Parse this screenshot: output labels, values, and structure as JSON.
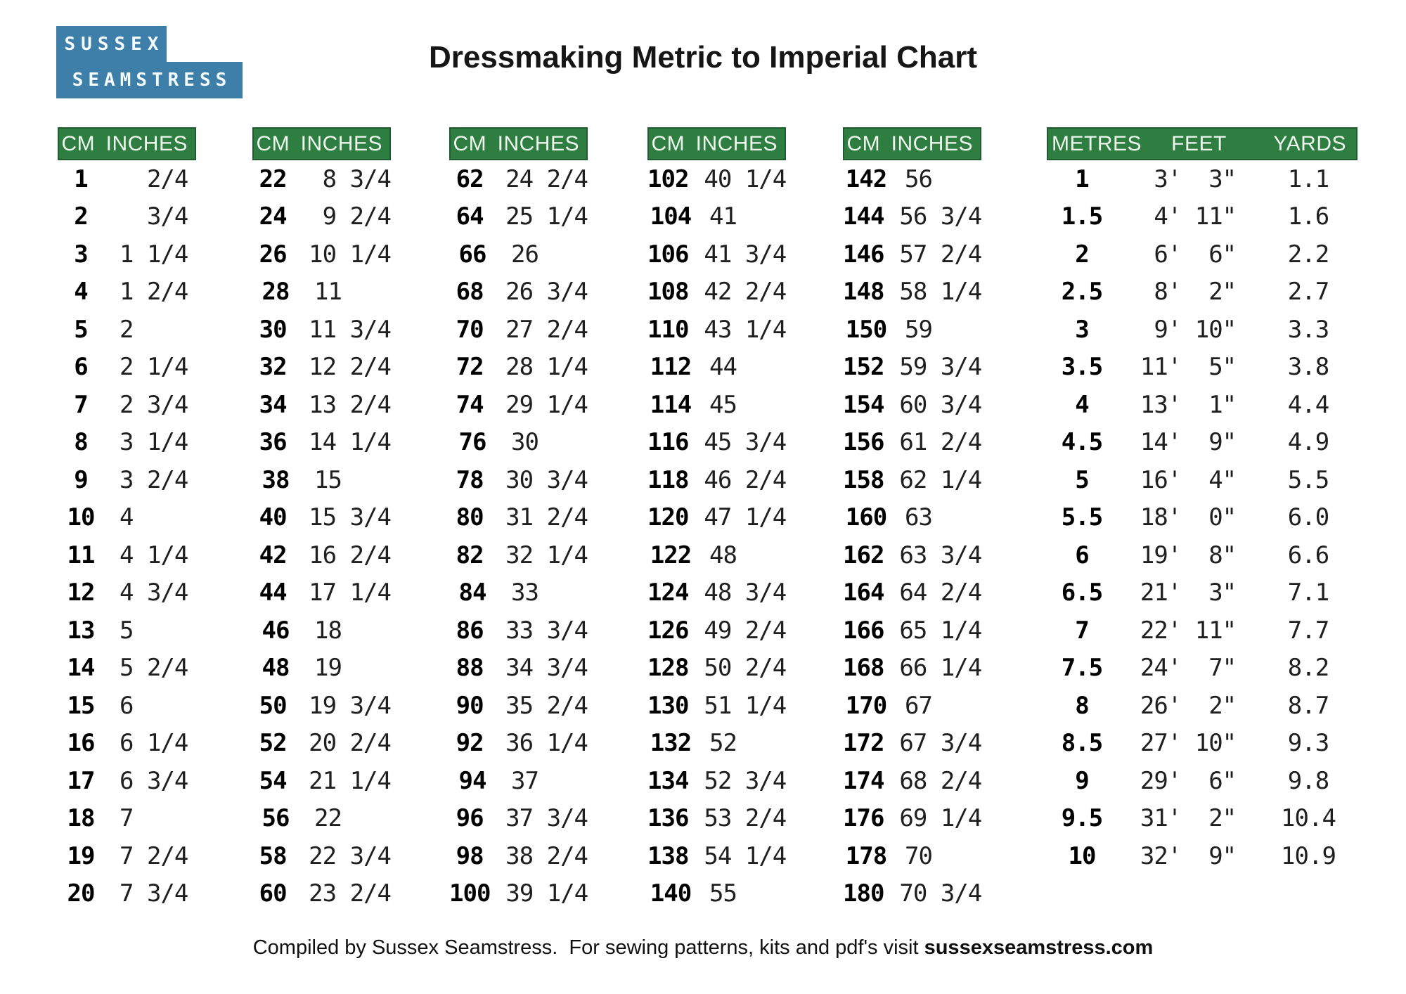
{
  "title": "Dressmaking Metric to Imperial Chart",
  "logo": {
    "line1": "SUSSEX",
    "line2": "SEAMSTRESS"
  },
  "colors": {
    "header_green": "#2e7d41",
    "logo_blue": "#3d7fa9"
  },
  "cm_tables": [
    {
      "headers": [
        "CM",
        "INCHES"
      ],
      "rows": [
        [
          "1",
          "  2/4"
        ],
        [
          "2",
          "  3/4"
        ],
        [
          "3",
          "1 1/4"
        ],
        [
          "4",
          "1 2/4"
        ],
        [
          "5",
          "2"
        ],
        [
          "6",
          "2 1/4"
        ],
        [
          "7",
          "2 3/4"
        ],
        [
          "8",
          "3 1/4"
        ],
        [
          "9",
          "3 2/4"
        ],
        [
          "10",
          "4"
        ],
        [
          "11",
          "4 1/4"
        ],
        [
          "12",
          "4 3/4"
        ],
        [
          "13",
          "5"
        ],
        [
          "14",
          "5 2/4"
        ],
        [
          "15",
          "6"
        ],
        [
          "16",
          "6 1/4"
        ],
        [
          "17",
          "6 3/4"
        ],
        [
          "18",
          "7"
        ],
        [
          "19",
          "7 2/4"
        ],
        [
          "20",
          "7 3/4"
        ]
      ]
    },
    {
      "headers": [
        "CM",
        "INCHES"
      ],
      "rows": [
        [
          "22",
          " 8 3/4"
        ],
        [
          "24",
          " 9 2/4"
        ],
        [
          "26",
          "10 1/4"
        ],
        [
          "28",
          "11"
        ],
        [
          "30",
          "11 3/4"
        ],
        [
          "32",
          "12 2/4"
        ],
        [
          "34",
          "13 2/4"
        ],
        [
          "36",
          "14 1/4"
        ],
        [
          "38",
          "15"
        ],
        [
          "40",
          "15 3/4"
        ],
        [
          "42",
          "16 2/4"
        ],
        [
          "44",
          "17 1/4"
        ],
        [
          "46",
          "18"
        ],
        [
          "48",
          "19"
        ],
        [
          "50",
          "19 3/4"
        ],
        [
          "52",
          "20 2/4"
        ],
        [
          "54",
          "21 1/4"
        ],
        [
          "56",
          "22"
        ],
        [
          "58",
          "22 3/4"
        ],
        [
          "60",
          "23 2/4"
        ]
      ]
    },
    {
      "headers": [
        "CM",
        "INCHES"
      ],
      "rows": [
        [
          "62",
          "24 2/4"
        ],
        [
          "64",
          "25 1/4"
        ],
        [
          "66",
          "26"
        ],
        [
          "68",
          "26 3/4"
        ],
        [
          "70",
          "27 2/4"
        ],
        [
          "72",
          "28 1/4"
        ],
        [
          "74",
          "29 1/4"
        ],
        [
          "76",
          "30"
        ],
        [
          "78",
          "30 3/4"
        ],
        [
          "80",
          "31 2/4"
        ],
        [
          "82",
          "32 1/4"
        ],
        [
          "84",
          "33"
        ],
        [
          "86",
          "33 3/4"
        ],
        [
          "88",
          "34 3/4"
        ],
        [
          "90",
          "35 2/4"
        ],
        [
          "92",
          "36 1/4"
        ],
        [
          "94",
          "37"
        ],
        [
          "96",
          "37 3/4"
        ],
        [
          "98",
          "38 2/4"
        ],
        [
          "100",
          "39 1/4"
        ]
      ]
    },
    {
      "headers": [
        "CM",
        "INCHES"
      ],
      "rows": [
        [
          "102",
          "40 1/4"
        ],
        [
          "104",
          "41"
        ],
        [
          "106",
          "41 3/4"
        ],
        [
          "108",
          "42 2/4"
        ],
        [
          "110",
          "43 1/4"
        ],
        [
          "112",
          "44"
        ],
        [
          "114",
          "45"
        ],
        [
          "116",
          "45 3/4"
        ],
        [
          "118",
          "46 2/4"
        ],
        [
          "120",
          "47 1/4"
        ],
        [
          "122",
          "48"
        ],
        [
          "124",
          "48 3/4"
        ],
        [
          "126",
          "49 2/4"
        ],
        [
          "128",
          "50 2/4"
        ],
        [
          "130",
          "51 1/4"
        ],
        [
          "132",
          "52"
        ],
        [
          "134",
          "52 3/4"
        ],
        [
          "136",
          "53 2/4"
        ],
        [
          "138",
          "54 1/4"
        ],
        [
          "140",
          "55"
        ]
      ]
    },
    {
      "headers": [
        "CM",
        "INCHES"
      ],
      "rows": [
        [
          "142",
          "56"
        ],
        [
          "144",
          "56 3/4"
        ],
        [
          "146",
          "57 2/4"
        ],
        [
          "148",
          "58 1/4"
        ],
        [
          "150",
          "59"
        ],
        [
          "152",
          "59 3/4"
        ],
        [
          "154",
          "60 3/4"
        ],
        [
          "156",
          "61 2/4"
        ],
        [
          "158",
          "62 1/4"
        ],
        [
          "160",
          "63"
        ],
        [
          "162",
          "63 3/4"
        ],
        [
          "164",
          "64 2/4"
        ],
        [
          "166",
          "65 1/4"
        ],
        [
          "168",
          "66 1/4"
        ],
        [
          "170",
          "67"
        ],
        [
          "172",
          "67 3/4"
        ],
        [
          "174",
          "68 2/4"
        ],
        [
          "176",
          "69 1/4"
        ],
        [
          "178",
          "70"
        ],
        [
          "180",
          "70 3/4"
        ]
      ]
    }
  ],
  "metres_table": {
    "headers": [
      "METRES",
      "FEET",
      "YARDS"
    ],
    "rows": [
      [
        "1",
        " 3'  3\"",
        "1.1"
      ],
      [
        "1.5",
        " 4' 11\"",
        "1.6"
      ],
      [
        "2",
        " 6'  6\"",
        "2.2"
      ],
      [
        "2.5",
        " 8'  2\"",
        "2.7"
      ],
      [
        "3",
        " 9' 10\"",
        "3.3"
      ],
      [
        "3.5",
        "11'  5\"",
        "3.8"
      ],
      [
        "4",
        "13'  1\"",
        "4.4"
      ],
      [
        "4.5",
        "14'  9\"",
        "4.9"
      ],
      [
        "5",
        "16'  4\"",
        "5.5"
      ],
      [
        "5.5",
        "18'  0\"",
        "6.0"
      ],
      [
        "6",
        "19'  8\"",
        "6.6"
      ],
      [
        "6.5",
        "21'  3\"",
        "7.1"
      ],
      [
        "7",
        "22' 11\"",
        "7.7"
      ],
      [
        "7.5",
        "24'  7\"",
        "8.2"
      ],
      [
        "8",
        "26'  2\"",
        "8.7"
      ],
      [
        "8.5",
        "27' 10\"",
        "9.3"
      ],
      [
        "9",
        "29'  6\"",
        "9.8"
      ],
      [
        "9.5",
        "31'  2\"",
        "10.4"
      ],
      [
        "10",
        "32'  9\"",
        "10.9"
      ]
    ]
  },
  "footer": {
    "text": "Compiled by Sussex Seamstress.  For sewing patterns, kits and pdf's visit ",
    "site": "sussexseamstress.com"
  }
}
